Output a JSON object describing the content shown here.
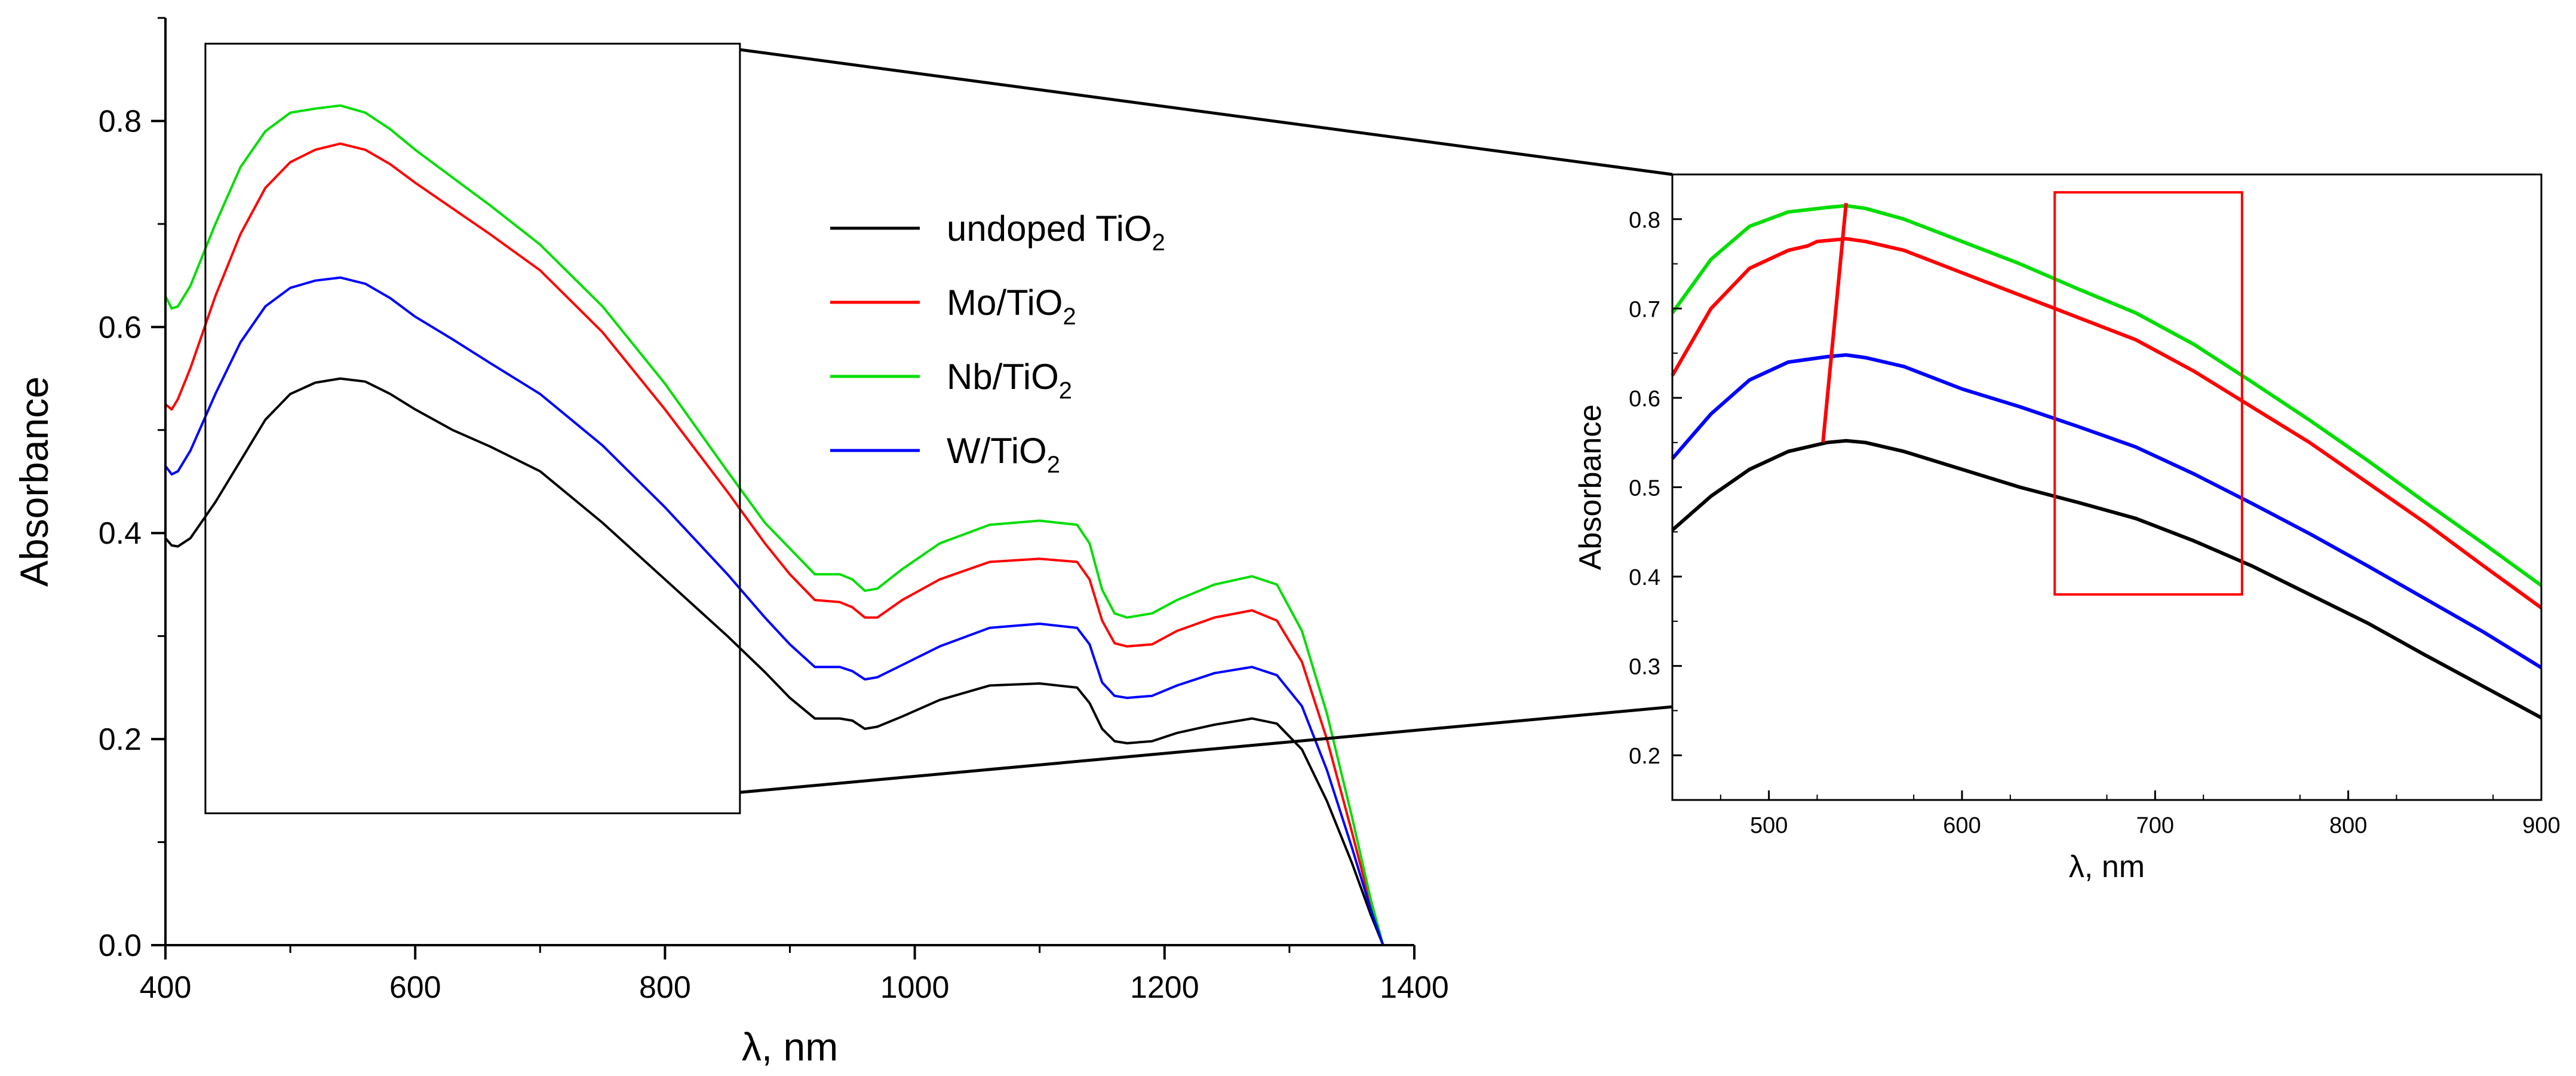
{
  "chart_data": [
    {
      "type": "line",
      "xlabel": "λ, nm",
      "ylabel": "Absorbance",
      "xlim": [
        400,
        1400
      ],
      "ylim": [
        0,
        0.9
      ],
      "xticks": [
        "400",
        "600",
        "800",
        "1000",
        "1200",
        "1400"
      ],
      "yticks": [
        "0.0",
        "0.2",
        "0.4",
        "0.6",
        "0.8"
      ],
      "grid": false,
      "legend_position": "center",
      "zoom_box": {
        "x": [
          432,
          860
        ],
        "y": [
          0.128,
          0.875
        ]
      },
      "series": [
        {
          "name_main": "undoped TiO",
          "name_sub": "2",
          "color": "#000000",
          "x": [
            400,
            405,
            410,
            420,
            440,
            460,
            480,
            500,
            520,
            540,
            560,
            580,
            600,
            630,
            660,
            700,
            750,
            800,
            850,
            880,
            900,
            920,
            940,
            950,
            960,
            970,
            990,
            1020,
            1060,
            1100,
            1130,
            1140,
            1150,
            1160,
            1170,
            1190,
            1210,
            1240,
            1270,
            1290,
            1310,
            1330,
            1350,
            1365,
            1375
          ],
          "y": [
            0.395,
            0.388,
            0.387,
            0.395,
            0.43,
            0.47,
            0.51,
            0.535,
            0.546,
            0.55,
            0.547,
            0.535,
            0.52,
            0.5,
            0.484,
            0.46,
            0.41,
            0.355,
            0.3,
            0.265,
            0.24,
            0.22,
            0.22,
            0.218,
            0.21,
            0.212,
            0.222,
            0.238,
            0.252,
            0.254,
            0.25,
            0.235,
            0.21,
            0.198,
            0.196,
            0.198,
            0.206,
            0.214,
            0.22,
            0.215,
            0.19,
            0.14,
            0.08,
            0.03,
            0.0
          ]
        },
        {
          "name_main": "Mo/TiO",
          "name_sub": "2",
          "color": "#ff0000",
          "x": [
            400,
            405,
            410,
            420,
            440,
            460,
            480,
            500,
            520,
            540,
            560,
            580,
            600,
            630,
            660,
            700,
            750,
            800,
            850,
            880,
            900,
            920,
            940,
            950,
            960,
            970,
            990,
            1020,
            1060,
            1100,
            1130,
            1140,
            1150,
            1160,
            1170,
            1190,
            1210,
            1240,
            1270,
            1290,
            1310,
            1330,
            1350,
            1365,
            1375
          ],
          "y": [
            0.525,
            0.52,
            0.53,
            0.56,
            0.63,
            0.69,
            0.735,
            0.76,
            0.772,
            0.778,
            0.772,
            0.758,
            0.74,
            0.715,
            0.69,
            0.655,
            0.595,
            0.52,
            0.44,
            0.39,
            0.36,
            0.335,
            0.333,
            0.328,
            0.318,
            0.318,
            0.335,
            0.355,
            0.372,
            0.375,
            0.372,
            0.355,
            0.315,
            0.293,
            0.29,
            0.292,
            0.305,
            0.318,
            0.325,
            0.315,
            0.275,
            0.2,
            0.11,
            0.04,
            0.0
          ]
        },
        {
          "name_main": "Nb/TiO",
          "name_sub": "2",
          "color": "#00dd00",
          "x": [
            400,
            405,
            410,
            420,
            440,
            460,
            480,
            500,
            520,
            540,
            560,
            580,
            600,
            630,
            660,
            700,
            750,
            800,
            850,
            880,
            900,
            920,
            940,
            950,
            960,
            970,
            990,
            1020,
            1060,
            1100,
            1130,
            1140,
            1150,
            1160,
            1170,
            1190,
            1210,
            1240,
            1270,
            1290,
            1310,
            1330,
            1350,
            1365,
            1375
          ],
          "y": [
            0.63,
            0.618,
            0.62,
            0.64,
            0.7,
            0.755,
            0.79,
            0.808,
            0.812,
            0.815,
            0.808,
            0.792,
            0.772,
            0.745,
            0.718,
            0.68,
            0.62,
            0.545,
            0.46,
            0.41,
            0.385,
            0.36,
            0.36,
            0.355,
            0.344,
            0.346,
            0.365,
            0.39,
            0.408,
            0.412,
            0.408,
            0.39,
            0.345,
            0.322,
            0.318,
            0.322,
            0.335,
            0.35,
            0.358,
            0.35,
            0.305,
            0.225,
            0.125,
            0.045,
            0.0
          ]
        },
        {
          "name_main": "W/TiO",
          "name_sub": "2",
          "color": "#0000ff",
          "x": [
            400,
            405,
            410,
            420,
            440,
            460,
            480,
            500,
            520,
            540,
            560,
            580,
            600,
            630,
            660,
            700,
            750,
            800,
            850,
            880,
            900,
            920,
            940,
            950,
            960,
            970,
            990,
            1020,
            1060,
            1100,
            1130,
            1140,
            1150,
            1160,
            1170,
            1190,
            1210,
            1240,
            1270,
            1290,
            1310,
            1330,
            1350,
            1365,
            1375
          ],
          "y": [
            0.465,
            0.457,
            0.46,
            0.48,
            0.535,
            0.585,
            0.62,
            0.638,
            0.645,
            0.648,
            0.642,
            0.628,
            0.61,
            0.588,
            0.565,
            0.535,
            0.485,
            0.425,
            0.36,
            0.318,
            0.292,
            0.27,
            0.27,
            0.266,
            0.258,
            0.26,
            0.272,
            0.29,
            0.308,
            0.312,
            0.308,
            0.292,
            0.255,
            0.242,
            0.24,
            0.242,
            0.252,
            0.264,
            0.27,
            0.262,
            0.232,
            0.17,
            0.095,
            0.035,
            0.0
          ]
        }
      ]
    },
    {
      "type": "line",
      "xlabel": "λ, nm",
      "ylabel": "Absorbance",
      "xlim": [
        450,
        900
      ],
      "ylim": [
        0.15,
        0.85
      ],
      "xticks": [
        "500",
        "600",
        "700",
        "800",
        "900"
      ],
      "yticks": [
        "0.2",
        "0.3",
        "0.4",
        "0.5",
        "0.6",
        "0.7",
        "0.8"
      ],
      "grid": false,
      "highlight_box": {
        "x": [
          648,
          745
        ],
        "y": [
          0.38,
          0.83
        ]
      },
      "peak_line": {
        "x": [
          528,
          540
        ],
        "y": [
          0.55,
          0.818
        ]
      },
      "series": [
        {
          "color": "#000000",
          "x": [
            450,
            470,
            490,
            510,
            530,
            540,
            550,
            570,
            600,
            630,
            660,
            690,
            720,
            750,
            780,
            810,
            840,
            870,
            900
          ],
          "y": [
            0.452,
            0.49,
            0.52,
            0.54,
            0.55,
            0.552,
            0.55,
            0.54,
            0.52,
            0.5,
            0.483,
            0.465,
            0.44,
            0.412,
            0.38,
            0.348,
            0.312,
            0.277,
            0.242
          ]
        },
        {
          "color": "#ff0000",
          "x": [
            450,
            470,
            490,
            510,
            520,
            525,
            530,
            540,
            550,
            570,
            600,
            630,
            660,
            690,
            720,
            750,
            780,
            810,
            840,
            870,
            900
          ],
          "y": [
            0.625,
            0.7,
            0.745,
            0.765,
            0.77,
            0.775,
            0.776,
            0.778,
            0.775,
            0.765,
            0.74,
            0.715,
            0.69,
            0.665,
            0.63,
            0.59,
            0.55,
            0.505,
            0.46,
            0.412,
            0.365
          ]
        },
        {
          "color": "#00dd00",
          "x": [
            450,
            470,
            490,
            510,
            530,
            540,
            550,
            570,
            600,
            630,
            660,
            690,
            720,
            750,
            780,
            810,
            840,
            870,
            900
          ],
          "y": [
            0.695,
            0.755,
            0.792,
            0.808,
            0.813,
            0.815,
            0.812,
            0.8,
            0.775,
            0.75,
            0.722,
            0.695,
            0.66,
            0.618,
            0.575,
            0.53,
            0.483,
            0.437,
            0.39
          ]
        },
        {
          "color": "#0000ff",
          "x": [
            450,
            470,
            490,
            510,
            530,
            540,
            550,
            570,
            600,
            630,
            660,
            690,
            720,
            750,
            780,
            810,
            840,
            870,
            900
          ],
          "y": [
            0.532,
            0.582,
            0.62,
            0.64,
            0.646,
            0.648,
            0.645,
            0.635,
            0.61,
            0.59,
            0.568,
            0.545,
            0.515,
            0.482,
            0.448,
            0.412,
            0.375,
            0.338,
            0.298
          ]
        }
      ]
    }
  ]
}
